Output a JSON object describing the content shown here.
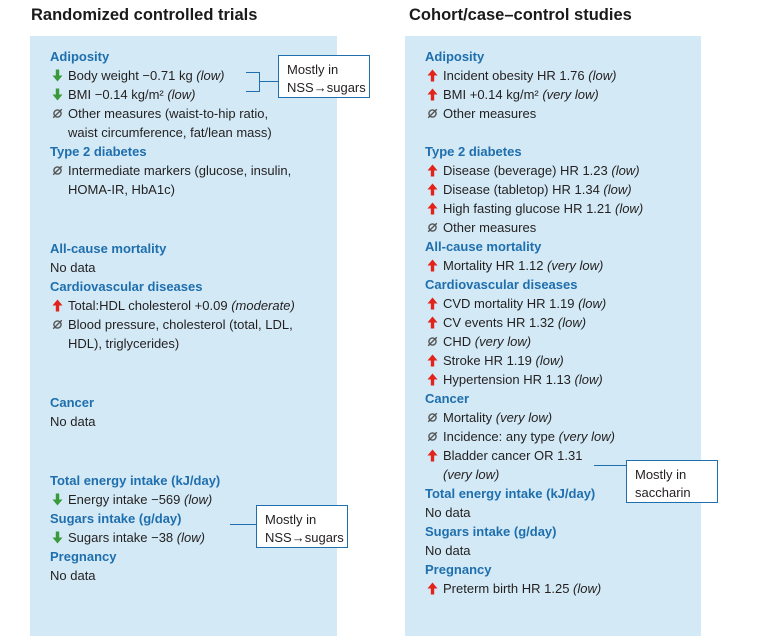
{
  "left": {
    "title": "Randomized controlled trials",
    "sections": [
      {
        "heading": "Adiposity",
        "items": [
          {
            "marker": "down",
            "text": "Body weight −0.71 kg ",
            "cert": "(low)"
          },
          {
            "marker": "down",
            "text": "BMI −0.14 kg/m² ",
            "cert": "(low)"
          },
          {
            "marker": "null",
            "text": "Other measures (waist-to-hip ratio,",
            "cont": "waist circumference, fat/lean mass)"
          }
        ]
      },
      {
        "heading": "Type 2 diabetes",
        "items": [
          {
            "marker": "null",
            "text": "Intermediate markers (glucose, insulin,",
            "cont": "HOMA-IR, HbA1c)"
          }
        ]
      },
      {
        "heading": "All-cause mortality",
        "nodata": "No data"
      },
      {
        "heading": "Cardiovascular diseases",
        "items": [
          {
            "marker": "up",
            "text": "Total:HDL cholesterol +0.09 ",
            "cert": "(moderate)"
          },
          {
            "marker": "null",
            "text": "Blood pressure, cholesterol (total, LDL,",
            "cont": "HDL), triglycerides)"
          }
        ]
      },
      {
        "heading": "Cancer",
        "nodata": "No data"
      },
      {
        "heading": "Total energy intake (kJ/day)",
        "items": [
          {
            "marker": "down",
            "text": "Energy intake −569 ",
            "cert": "(low)"
          }
        ]
      },
      {
        "heading": "Sugars intake (g/day)",
        "items": [
          {
            "marker": "down",
            "text": "Sugars intake −38 ",
            "cert": "(low)"
          }
        ]
      },
      {
        "heading": "Pregnancy",
        "nodata": "No data"
      }
    ],
    "callout_adiposity": {
      "line1": "Mostly in",
      "line2": "NSS→sugars"
    },
    "callout_energy": {
      "line1": "Mostly in",
      "line2": "NSS→sugars"
    }
  },
  "right": {
    "title": "Cohort/case–control studies",
    "sections": [
      {
        "heading": "Adiposity",
        "items": [
          {
            "marker": "up",
            "text": "Incident obesity HR 1.76 ",
            "cert": "(low)"
          },
          {
            "marker": "up",
            "text": "BMI +0.14 kg/m² ",
            "cert": "(very low)"
          },
          {
            "marker": "null",
            "text": "Other measures"
          }
        ]
      },
      {
        "heading": "Type 2 diabetes",
        "items": [
          {
            "marker": "up",
            "text": "Disease (beverage) HR 1.23 ",
            "cert": "(low)"
          },
          {
            "marker": "up",
            "text": "Disease (tabletop) HR 1.34 ",
            "cert": "(low)"
          },
          {
            "marker": "up",
            "text": "High fasting glucose HR 1.21 ",
            "cert": "(low)"
          },
          {
            "marker": "null",
            "text": "Other measures"
          }
        ]
      },
      {
        "heading": "All-cause mortality",
        "items": [
          {
            "marker": "up",
            "text": "Mortality HR 1.12 ",
            "cert": "(very low)"
          }
        ]
      },
      {
        "heading": "Cardiovascular diseases",
        "items": [
          {
            "marker": "up",
            "text": "CVD mortality HR 1.19 ",
            "cert": "(low)"
          },
          {
            "marker": "up",
            "text": "CV events HR 1.32 ",
            "cert": "(low)"
          },
          {
            "marker": "null",
            "text": "CHD ",
            "cert": "(very low)"
          },
          {
            "marker": "up",
            "text": "Stroke HR 1.19 ",
            "cert": "(low)"
          },
          {
            "marker": "up",
            "text": "Hypertension HR 1.13 ",
            "cert": "(low)"
          }
        ]
      },
      {
        "heading": "Cancer",
        "items": [
          {
            "marker": "null",
            "text": "Mortality ",
            "cert": "(very low)"
          },
          {
            "marker": "null",
            "text": "Incidence: any type ",
            "cert": "(very low)"
          },
          {
            "marker": "up",
            "text": "Bladder cancer OR 1.31",
            "cont_cert": "(very low)"
          }
        ]
      },
      {
        "heading": "Total energy intake (kJ/day)",
        "nodata": "No data"
      },
      {
        "heading": "Sugars intake (g/day)",
        "nodata": "No data"
      },
      {
        "heading": "Pregnancy",
        "items": [
          {
            "marker": "up",
            "text": "Preterm birth HR 1.25 ",
            "cert": "(low)"
          }
        ]
      }
    ],
    "callout_bladder": {
      "line1": "Mostly in",
      "line2": "saccharin"
    }
  },
  "colors": {
    "panel": "#d3eaf6",
    "heading": "#1f6ead",
    "up": "#e2231a",
    "down": "#3a9a3a",
    "null": "#555555"
  }
}
